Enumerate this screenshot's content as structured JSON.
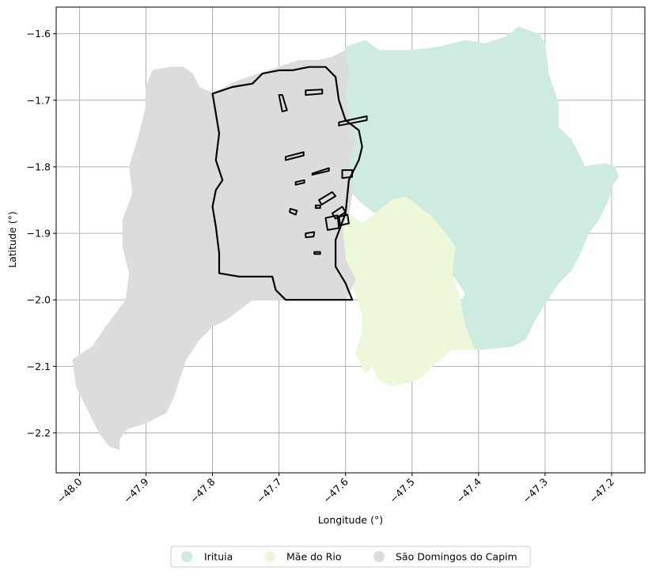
{
  "chart_data": {
    "type": "map",
    "xlabel": "Longitude (°)",
    "ylabel": "Latitude (°)",
    "xlim": [
      -48.035,
      -47.15
    ],
    "ylim": [
      -2.26,
      -1.56
    ],
    "x_ticks": [
      {
        "value": -48.0,
        "label": "−48.0"
      },
      {
        "value": -47.9,
        "label": "−47.9"
      },
      {
        "value": -47.8,
        "label": "−47.8"
      },
      {
        "value": -47.7,
        "label": "−47.7"
      },
      {
        "value": -47.6,
        "label": "−47.6"
      },
      {
        "value": -47.5,
        "label": "−47.5"
      },
      {
        "value": -47.4,
        "label": "−47.4"
      },
      {
        "value": -47.3,
        "label": "−47.3"
      },
      {
        "value": -47.2,
        "label": "−47.2"
      }
    ],
    "y_ticks": [
      {
        "value": -1.6,
        "label": "−1.6"
      },
      {
        "value": -1.7,
        "label": "−1.7"
      },
      {
        "value": -1.8,
        "label": "−1.8"
      },
      {
        "value": -1.9,
        "label": "−1.9"
      },
      {
        "value": -2.0,
        "label": "−2.0"
      },
      {
        "value": -2.1,
        "label": "−2.1"
      },
      {
        "value": -2.2,
        "label": "−2.2"
      }
    ],
    "grid": true,
    "legend_position": "bottom-center",
    "regions": [
      {
        "name": "Irituia",
        "color": "#cdebdf",
        "polygon": [
          [
            -47.6,
            -1.62
          ],
          [
            -47.57,
            -1.61
          ],
          [
            -47.55,
            -1.625
          ],
          [
            -47.5,
            -1.625
          ],
          [
            -47.46,
            -1.62
          ],
          [
            -47.42,
            -1.61
          ],
          [
            -47.39,
            -1.615
          ],
          [
            -47.36,
            -1.605
          ],
          [
            -47.34,
            -1.59
          ],
          [
            -47.31,
            -1.6
          ],
          [
            -47.3,
            -1.615
          ],
          [
            -47.295,
            -1.66
          ],
          [
            -47.28,
            -1.705
          ],
          [
            -47.28,
            -1.74
          ],
          [
            -47.26,
            -1.76
          ],
          [
            -47.25,
            -1.78
          ],
          [
            -47.24,
            -1.8
          ],
          [
            -47.21,
            -1.795
          ],
          [
            -47.195,
            -1.8
          ],
          [
            -47.19,
            -1.815
          ],
          [
            -47.2,
            -1.83
          ],
          [
            -47.205,
            -1.85
          ],
          [
            -47.22,
            -1.88
          ],
          [
            -47.235,
            -1.9
          ],
          [
            -47.245,
            -1.925
          ],
          [
            -47.26,
            -1.955
          ],
          [
            -47.28,
            -1.975
          ],
          [
            -47.3,
            -2.005
          ],
          [
            -47.315,
            -2.03
          ],
          [
            -47.33,
            -2.06
          ],
          [
            -47.35,
            -2.07
          ],
          [
            -47.4,
            -2.075
          ],
          [
            -47.43,
            -2.07
          ],
          [
            -47.45,
            -2.055
          ],
          [
            -47.42,
            -1.99
          ],
          [
            -47.44,
            -1.96
          ],
          [
            -47.44,
            -1.935
          ],
          [
            -47.46,
            -1.92
          ],
          [
            -47.48,
            -1.9
          ],
          [
            -47.5,
            -1.89
          ],
          [
            -47.53,
            -1.88
          ],
          [
            -47.555,
            -1.87
          ],
          [
            -47.575,
            -1.855
          ],
          [
            -47.59,
            -1.84
          ],
          [
            -47.595,
            -1.8
          ],
          [
            -47.585,
            -1.76
          ],
          [
            -47.595,
            -1.73
          ],
          [
            -47.6,
            -1.69
          ],
          [
            -47.595,
            -1.66
          ],
          [
            -47.6,
            -1.64
          ]
        ]
      },
      {
        "name": "Mãe do Rio",
        "color": "#edf7da",
        "polygon": [
          [
            -47.595,
            -1.87
          ],
          [
            -47.575,
            -1.885
          ],
          [
            -47.555,
            -1.87
          ],
          [
            -47.53,
            -1.85
          ],
          [
            -47.51,
            -1.845
          ],
          [
            -47.49,
            -1.86
          ],
          [
            -47.47,
            -1.875
          ],
          [
            -47.45,
            -1.9
          ],
          [
            -47.435,
            -1.92
          ],
          [
            -47.44,
            -1.96
          ],
          [
            -47.43,
            -1.99
          ],
          [
            -47.42,
            -2.04
          ],
          [
            -47.405,
            -2.075
          ],
          [
            -47.44,
            -2.075
          ],
          [
            -47.47,
            -2.1
          ],
          [
            -47.49,
            -2.12
          ],
          [
            -47.51,
            -2.125
          ],
          [
            -47.53,
            -2.13
          ],
          [
            -47.55,
            -2.12
          ],
          [
            -47.56,
            -2.1
          ],
          [
            -47.57,
            -2.11
          ],
          [
            -47.585,
            -2.08
          ],
          [
            -47.575,
            -2.05
          ],
          [
            -47.575,
            -2.02
          ],
          [
            -47.585,
            -1.99
          ],
          [
            -47.6,
            -1.96
          ],
          [
            -47.61,
            -1.92
          ],
          [
            -47.605,
            -1.89
          ]
        ]
      },
      {
        "name": "São Domingos do Capim",
        "color": "#dcdcdc",
        "polygon": [
          [
            -47.6,
            -1.625
          ],
          [
            -47.62,
            -1.635
          ],
          [
            -47.64,
            -1.64
          ],
          [
            -47.67,
            -1.64
          ],
          [
            -47.7,
            -1.65
          ],
          [
            -47.73,
            -1.66
          ],
          [
            -47.76,
            -1.67
          ],
          [
            -47.78,
            -1.68
          ],
          [
            -47.8,
            -1.69
          ],
          [
            -47.82,
            -1.68
          ],
          [
            -47.83,
            -1.66
          ],
          [
            -47.845,
            -1.65
          ],
          [
            -47.86,
            -1.65
          ],
          [
            -47.89,
            -1.655
          ],
          [
            -47.9,
            -1.68
          ],
          [
            -47.9,
            -1.71
          ],
          [
            -47.91,
            -1.75
          ],
          [
            -47.925,
            -1.8
          ],
          [
            -47.92,
            -1.84
          ],
          [
            -47.935,
            -1.88
          ],
          [
            -47.935,
            -1.92
          ],
          [
            -47.925,
            -1.96
          ],
          [
            -47.93,
            -2.0
          ],
          [
            -47.96,
            -2.04
          ],
          [
            -47.98,
            -2.07
          ],
          [
            -48.01,
            -2.09
          ],
          [
            -48.005,
            -2.13
          ],
          [
            -47.985,
            -2.17
          ],
          [
            -47.97,
            -2.2
          ],
          [
            -47.955,
            -2.22
          ],
          [
            -47.94,
            -2.225
          ],
          [
            -47.94,
            -2.21
          ],
          [
            -47.93,
            -2.195
          ],
          [
            -47.9,
            -2.185
          ],
          [
            -47.87,
            -2.17
          ],
          [
            -47.86,
            -2.15
          ],
          [
            -47.85,
            -2.12
          ],
          [
            -47.84,
            -2.09
          ],
          [
            -47.82,
            -2.06
          ],
          [
            -47.8,
            -2.04
          ],
          [
            -47.78,
            -2.03
          ],
          [
            -47.76,
            -2.015
          ],
          [
            -47.74,
            -2.0
          ],
          [
            -47.7,
            -2.0
          ],
          [
            -47.65,
            -2.0
          ],
          [
            -47.6,
            -2.0
          ],
          [
            -47.585,
            -1.97
          ],
          [
            -47.6,
            -1.94
          ],
          [
            -47.605,
            -1.89
          ],
          [
            -47.595,
            -1.87
          ],
          [
            -47.59,
            -1.84
          ],
          [
            -47.595,
            -1.8
          ],
          [
            -47.585,
            -1.76
          ],
          [
            -47.595,
            -1.73
          ],
          [
            -47.6,
            -1.69
          ],
          [
            -47.595,
            -1.66
          ]
        ]
      }
    ],
    "outline": {
      "color": "#000000",
      "polygon": [
        [
          -47.8,
          -1.69
        ],
        [
          -47.77,
          -1.68
        ],
        [
          -47.74,
          -1.675
        ],
        [
          -47.725,
          -1.66
        ],
        [
          -47.7,
          -1.655
        ],
        [
          -47.68,
          -1.655
        ],
        [
          -47.655,
          -1.65
        ],
        [
          -47.63,
          -1.65
        ],
        [
          -47.615,
          -1.665
        ],
        [
          -47.61,
          -1.7
        ],
        [
          -47.6,
          -1.73
        ],
        [
          -47.58,
          -1.745
        ],
        [
          -47.575,
          -1.77
        ],
        [
          -47.58,
          -1.79
        ],
        [
          -47.595,
          -1.82
        ],
        [
          -47.6,
          -1.87
        ],
        [
          -47.615,
          -1.91
        ],
        [
          -47.615,
          -1.95
        ],
        [
          -47.6,
          -1.975
        ],
        [
          -47.59,
          -2.0
        ],
        [
          -47.65,
          -2.0
        ],
        [
          -47.69,
          -2.0
        ],
        [
          -47.705,
          -1.985
        ],
        [
          -47.71,
          -1.965
        ],
        [
          -47.73,
          -1.965
        ],
        [
          -47.76,
          -1.965
        ],
        [
          -47.79,
          -1.96
        ],
        [
          -47.79,
          -1.93
        ],
        [
          -47.795,
          -1.89
        ],
        [
          -47.8,
          -1.86
        ],
        [
          -47.795,
          -1.835
        ],
        [
          -47.785,
          -1.82
        ],
        [
          -47.795,
          -1.79
        ],
        [
          -47.79,
          -1.75
        ],
        [
          -47.795,
          -1.72
        ]
      ],
      "inner_shapes": [
        [
          [
            -47.66,
            -1.685
          ],
          [
            -47.635,
            -1.684
          ],
          [
            -47.635,
            -1.69
          ],
          [
            -47.66,
            -1.692
          ]
        ],
        [
          [
            -47.7,
            -1.692
          ],
          [
            -47.695,
            -1.692
          ],
          [
            -47.688,
            -1.715
          ],
          [
            -47.695,
            -1.717
          ]
        ],
        [
          [
            -47.61,
            -1.733
          ],
          [
            -47.568,
            -1.724
          ],
          [
            -47.568,
            -1.73
          ],
          [
            -47.61,
            -1.738
          ]
        ],
        [
          [
            -47.69,
            -1.785
          ],
          [
            -47.663,
            -1.778
          ],
          [
            -47.663,
            -1.783
          ],
          [
            -47.69,
            -1.79
          ]
        ],
        [
          [
            -47.65,
            -1.81
          ],
          [
            -47.625,
            -1.802
          ],
          [
            -47.625,
            -1.806
          ],
          [
            -47.65,
            -1.812
          ]
        ],
        [
          [
            -47.605,
            -1.805
          ],
          [
            -47.59,
            -1.805
          ],
          [
            -47.59,
            -1.815
          ],
          [
            -47.605,
            -1.817
          ]
        ],
        [
          [
            -47.675,
            -1.823
          ],
          [
            -47.662,
            -1.82
          ],
          [
            -47.662,
            -1.824
          ],
          [
            -47.675,
            -1.827
          ]
        ],
        [
          [
            -47.64,
            -1.85
          ],
          [
            -47.62,
            -1.838
          ],
          [
            -47.615,
            -1.844
          ],
          [
            -47.636,
            -1.857
          ]
        ],
        [
          [
            -47.62,
            -1.87
          ],
          [
            -47.605,
            -1.86
          ],
          [
            -47.6,
            -1.868
          ],
          [
            -47.615,
            -1.878
          ]
        ],
        [
          [
            -47.645,
            -1.858
          ],
          [
            -47.638,
            -1.858
          ],
          [
            -47.638,
            -1.862
          ],
          [
            -47.645,
            -1.862
          ]
        ],
        [
          [
            -47.683,
            -1.863
          ],
          [
            -47.673,
            -1.866
          ],
          [
            -47.675,
            -1.872
          ],
          [
            -47.684,
            -1.868
          ]
        ],
        [
          [
            -47.63,
            -1.877
          ],
          [
            -47.612,
            -1.873
          ],
          [
            -47.61,
            -1.892
          ],
          [
            -47.627,
            -1.895
          ]
        ],
        [
          [
            -47.61,
            -1.875
          ],
          [
            -47.597,
            -1.872
          ],
          [
            -47.595,
            -1.885
          ],
          [
            -47.608,
            -1.888
          ]
        ],
        [
          [
            -47.66,
            -1.9
          ],
          [
            -47.647,
            -1.898
          ],
          [
            -47.648,
            -1.905
          ],
          [
            -47.66,
            -1.906
          ]
        ],
        [
          [
            -47.647,
            -1.928
          ],
          [
            -47.638,
            -1.928
          ],
          [
            -47.638,
            -1.931
          ],
          [
            -47.647,
            -1.931
          ]
        ]
      ]
    }
  },
  "legend": [
    {
      "label": "Irituia",
      "color": "#cdebdf"
    },
    {
      "label": "Mãe do Rio",
      "color": "#edf7da"
    },
    {
      "label": "São Domingos do Capim",
      "color": "#dcdcdc"
    }
  ]
}
